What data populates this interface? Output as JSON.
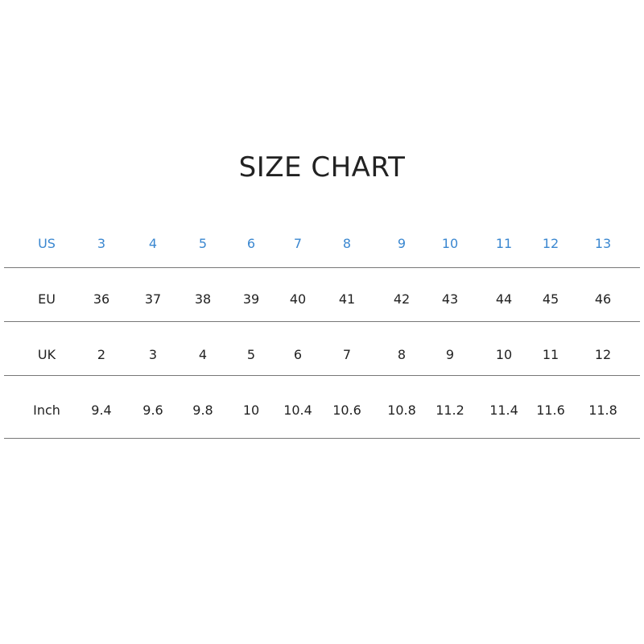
{
  "title": "SIZE CHART",
  "header_color": "#3a87d0",
  "rows": [
    {
      "label": "US",
      "values": [
        "3",
        "4",
        "5",
        "6",
        "7",
        "8",
        "9",
        "10",
        "11",
        "12",
        "13"
      ]
    },
    {
      "label": "EU",
      "values": [
        "36",
        "37",
        "38",
        "39",
        "40",
        "41",
        "42",
        "43",
        "44",
        "45",
        "46"
      ]
    },
    {
      "label": "UK",
      "values": [
        "2",
        "3",
        "4",
        "5",
        "6",
        "7",
        "8",
        "9",
        "10",
        "11",
        "12"
      ]
    },
    {
      "label": "Inch",
      "values": [
        "9.4",
        "9.6",
        "9.8",
        "10",
        "10.4",
        "10.6",
        "10.8",
        "11.2",
        "11.4",
        "11.6",
        "11.8"
      ]
    }
  ]
}
